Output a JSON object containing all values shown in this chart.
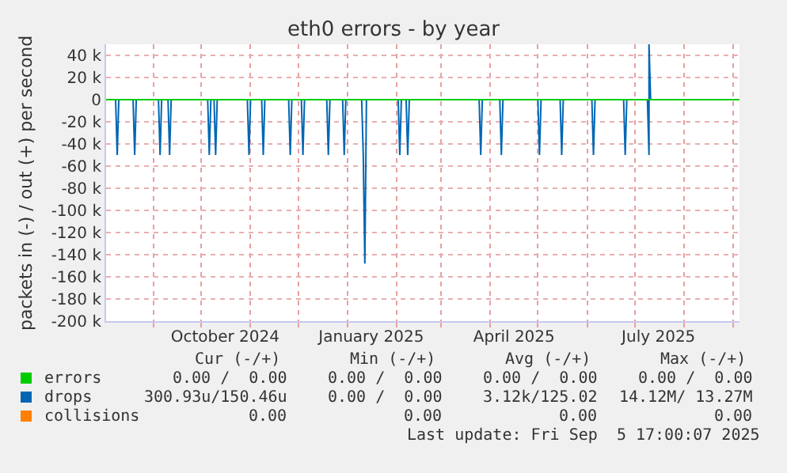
{
  "chart_data": {
    "type": "line",
    "title": "eth0 errors - by year",
    "ylabel": "packets in (-) / out (+) per second",
    "xlim": [
      "2024-08-02",
      "2025-09-05"
    ],
    "xticks": [
      {
        "value": "2024-09-01",
        "label": null
      },
      {
        "value": "2024-10-01",
        "label": null
      },
      {
        "value": "2024-11-01",
        "label": null
      },
      {
        "value": "2024-12-01",
        "label": null
      },
      {
        "value": "2025-01-01",
        "label": null
      },
      {
        "value": "2025-02-01",
        "label": null
      },
      {
        "value": "2025-03-01",
        "label": null
      },
      {
        "value": "2025-04-01",
        "label": null
      },
      {
        "value": "2025-05-01",
        "label": null
      },
      {
        "value": "2025-06-01",
        "label": null
      },
      {
        "value": "2025-07-01",
        "label": null
      },
      {
        "value": "2025-08-01",
        "label": null
      },
      {
        "value": "2025-09-01",
        "label": null
      },
      {
        "value": "2024-10-16",
        "label": "October 2024"
      },
      {
        "value": "2025-01-16",
        "label": "January 2025"
      },
      {
        "value": "2025-04-16",
        "label": "April 2025"
      },
      {
        "value": "2025-07-16",
        "label": "July 2025"
      }
    ],
    "ylim": [
      -200000,
      50000
    ],
    "yticks": [
      {
        "value": 40000,
        "label": "40 k"
      },
      {
        "value": 20000,
        "label": "20 k"
      },
      0,
      {
        "value": -20000,
        "label": "-20 k"
      },
      {
        "value": -40000,
        "label": "-40 k"
      },
      {
        "value": -60000,
        "label": "-60 k"
      },
      {
        "value": -80000,
        "label": "-80 k"
      },
      {
        "value": -100000,
        "label": "-100 k"
      },
      {
        "value": -120000,
        "label": "-120 k"
      },
      {
        "value": -140000,
        "label": "-140 k"
      },
      {
        "value": -160000,
        "label": "-160 k"
      },
      {
        "value": -180000,
        "label": "-180 k"
      },
      {
        "value": -200000,
        "label": "-200 k"
      }
    ],
    "grid": true,
    "legend": "bottom left",
    "series": [
      {
        "name": "drops",
        "color": "#0066b3",
        "x": [
          "2024-08-08",
          "2024-08-09",
          "2024-08-10",
          "2024-08-19",
          "2024-08-20",
          "2024-08-21",
          "2024-09-04",
          "2024-09-05",
          "2024-09-06",
          "2024-09-10",
          "2024-09-11",
          "2024-09-12",
          "2024-10-05",
          "2024-10-06",
          "2024-10-07",
          "2024-10-09",
          "2024-10-10",
          "2024-10-11",
          "2024-10-30",
          "2024-10-31",
          "2024-11-01",
          "2024-11-08",
          "2024-11-09",
          "2024-11-10",
          "2024-11-25",
          "2024-11-26",
          "2024-11-27",
          "2024-12-03",
          "2024-12-04",
          "2024-12-05",
          "2024-12-19",
          "2024-12-20",
          "2024-12-21",
          "2024-12-29",
          "2024-12-30",
          "2024-12-31",
          "2025-01-10",
          "2025-01-11",
          "2025-01-12",
          "2025-01-13",
          "2025-02-02",
          "2025-02-03",
          "2025-02-04",
          "2025-02-07",
          "2025-02-08",
          "2025-02-09",
          "2025-03-25",
          "2025-03-26",
          "2025-03-27",
          "2025-04-07",
          "2025-04-08",
          "2025-04-09",
          "2025-05-01",
          "2025-05-02",
          "2025-05-03",
          "2025-05-15",
          "2025-05-16",
          "2025-05-17",
          "2025-06-04",
          "2025-06-05",
          "2025-06-06",
          "2025-06-24",
          "2025-06-25",
          "2025-06-26",
          "2025-07-09",
          "2025-07-10",
          "2025-07-10",
          "2025-07-11"
        ],
        "values": [
          0,
          -50000,
          0,
          0,
          -50000,
          0,
          0,
          -50000,
          0,
          0,
          -50000,
          0,
          0,
          -50000,
          0,
          0,
          -50000,
          0,
          0,
          -50000,
          0,
          0,
          -50000,
          0,
          0,
          -50000,
          0,
          0,
          -50000,
          0,
          0,
          -50000,
          0,
          0,
          -50000,
          0,
          0,
          -50000,
          -148000,
          0,
          0,
          -50000,
          0,
          0,
          -50000,
          0,
          0,
          -50000,
          0,
          0,
          -50000,
          0,
          0,
          -50000,
          0,
          0,
          -50000,
          0,
          0,
          -50000,
          0,
          0,
          -50000,
          0,
          0,
          -50000,
          50000,
          0
        ]
      },
      {
        "name": "errors",
        "color": "#00cc00",
        "x": [
          "2024-08-02",
          "2025-09-05"
        ],
        "values": [
          0,
          0
        ]
      },
      {
        "name": "collisions",
        "color": "#ff8000"
      }
    ],
    "annotations": [
      "Cur (-/+)",
      "Min (-/+)",
      "Avg (-/+)",
      "Max (-/+)",
      "0.00 /  0.00",
      "0.00 /  0.00",
      "0.00 /  0.00",
      "0.00 /  0.00",
      "300.93u/150.46u",
      "0.00 /  0.00",
      "3.12k/125.02",
      "14.12M/ 13.27M",
      "0.00",
      "0.00",
      "0.00",
      "0.00",
      "Last update: Fri Sep  5 17:00:07 2025"
    ]
  }
}
